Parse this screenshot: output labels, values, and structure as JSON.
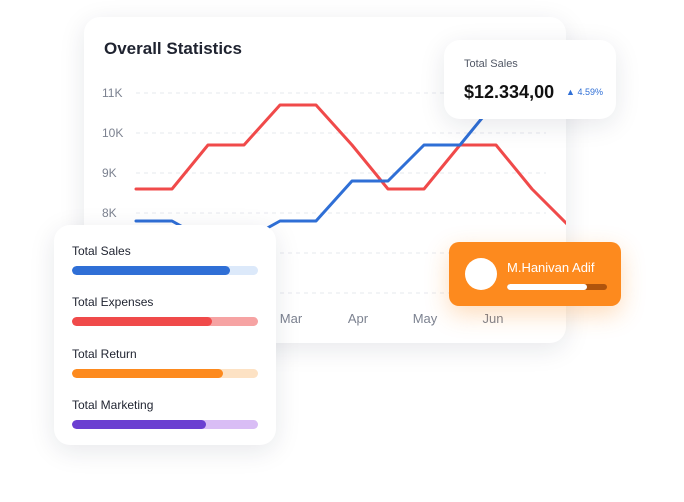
{
  "statistics": {
    "title": "Overall Statistics",
    "y_ticks": [
      "11K",
      "10K",
      "9K",
      "8K"
    ],
    "x_ticks": [
      "Mar",
      "Apr",
      "May",
      "Jun"
    ]
  },
  "chart_data": {
    "type": "line",
    "ylim": [
      7000,
      11500
    ],
    "x_labels_visible": [
      "Mar",
      "Apr",
      "May",
      "Jun"
    ],
    "series": [
      {
        "color": "#f04a4a",
        "values": [
          8600,
          8600,
          9700,
          9700,
          10700,
          10700,
          9700,
          8600,
          8600,
          9700,
          9700,
          8600,
          7700,
          7700
        ]
      },
      {
        "color": "#2f6fd6",
        "values": [
          7800,
          7800,
          7300,
          7300,
          7800,
          7800,
          8800,
          8800,
          9700,
          9700,
          10800,
          10800
        ]
      }
    ]
  },
  "total_sales_card": {
    "label": "Total Sales",
    "value": "$12.334,00",
    "change": "4.59%",
    "change_icon": "triangle-up-icon"
  },
  "user_card": {
    "name": "M.Hanivan Adif",
    "progress": 0.8,
    "background": "#fd8a1e"
  },
  "summary": {
    "metrics": [
      {
        "label": "Total Sales",
        "progress": 0.85,
        "color": "#2f6fd6",
        "track": "#dce9fa"
      },
      {
        "label": "Total Expenses",
        "progress": 0.75,
        "color": "#f04a4a",
        "track": "#f6a3a3"
      },
      {
        "label": "Total Return",
        "progress": 0.81,
        "color": "#fd8a1e",
        "track": "#fde2c4"
      },
      {
        "label": "Total Marketing",
        "progress": 0.72,
        "color": "#6b3fd1",
        "track": "#d9bdf5"
      }
    ]
  }
}
